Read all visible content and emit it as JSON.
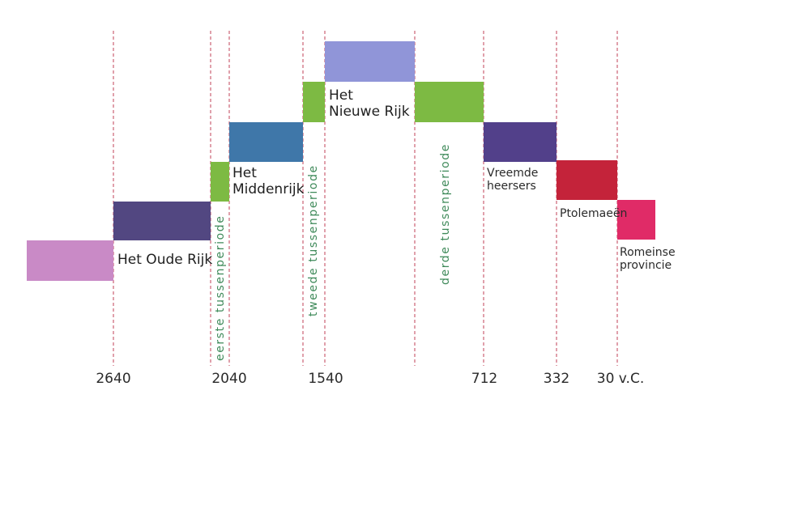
{
  "periods": [
    {
      "label": "",
      "color": "#c98ac6"
    },
    {
      "label": "Het Oude Rijk",
      "color": "#524781"
    },
    {
      "label": "",
      "color": "#7dba43"
    },
    {
      "label": "Het\nMiddenrijk",
      "color": "#3f77a9"
    },
    {
      "label": "",
      "color": "#7dba43"
    },
    {
      "label": "Het\nNieuwe Rijk",
      "color": "#9095d8"
    },
    {
      "label": "",
      "color": "#7dba43"
    },
    {
      "label": "Vreemde\nheersers",
      "color": "#52408a"
    },
    {
      "label": "Ptolemaeën",
      "color": "#c4233a"
    },
    {
      "label": "Romeinse\nprovincie",
      "color": "#e02b67"
    }
  ],
  "interludes": [
    {
      "label": "eerste tussenperiode"
    },
    {
      "label": "tweede tussenperiode"
    },
    {
      "label": "derde tussenperiode"
    }
  ],
  "years": [
    "2640",
    "2040",
    "1540",
    "712",
    "332",
    "30 v.C."
  ],
  "divider_color": "#b3122e"
}
